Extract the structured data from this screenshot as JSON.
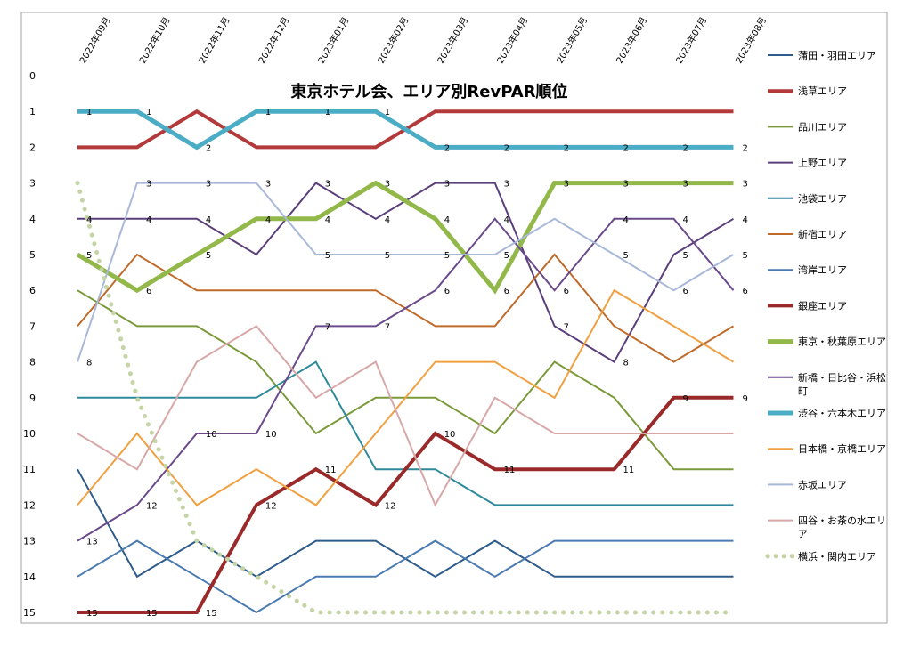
{
  "chart_data": {
    "type": "line",
    "title": "東京ホテル会、エリア別RevPAR順位",
    "xlabel": "",
    "ylabel": "",
    "x": [
      "2022年09月",
      "2022年10月",
      "2022年11月",
      "2022年12月",
      "2023年01月",
      "2023年02月",
      "2023年03月",
      "2023年04月",
      "2023年05月",
      "2023年06月",
      "2023年07月",
      "2023年08月"
    ],
    "y_ticks": [
      "0",
      "1",
      "2",
      "3",
      "4",
      "5",
      "6",
      "7",
      "8",
      "9",
      "10",
      "11",
      "12",
      "13",
      "14",
      "15"
    ],
    "ylim": [
      0,
      15
    ],
    "y_reversed": true,
    "grid": false,
    "legend_position": "right",
    "series": [
      {
        "name": "蒲田・羽田エリア",
        "color": "#2e5c8a",
        "width": 2,
        "dash": "",
        "values": [
          11,
          14,
          13,
          14,
          13,
          13,
          14,
          13,
          14,
          14,
          14,
          14
        ],
        "labels": [
          null,
          null,
          null,
          null,
          null,
          null,
          null,
          null,
          null,
          null,
          null,
          null
        ]
      },
      {
        "name": "浅草エリア",
        "color": "#b33a3a",
        "width": 4,
        "dash": "",
        "values": [
          2,
          2,
          1,
          2,
          2,
          2,
          1,
          1,
          1,
          1,
          1,
          1
        ],
        "labels": [
          null,
          null,
          null,
          null,
          null,
          null,
          null,
          null,
          null,
          null,
          null,
          null
        ]
      },
      {
        "name": "品川エリア",
        "color": "#7a9a3a",
        "width": 2,
        "dash": "",
        "values": [
          6,
          7,
          7,
          8,
          10,
          9,
          9,
          10,
          8,
          9,
          11,
          11
        ],
        "labels": [
          null,
          null,
          null,
          null,
          null,
          null,
          null,
          null,
          null,
          null,
          null,
          null
        ]
      },
      {
        "name": "上野エリア",
        "color": "#5b3f7a",
        "width": 2,
        "dash": "",
        "values": [
          4,
          4,
          4,
          5,
          3,
          4,
          3,
          3,
          7,
          8,
          5,
          4
        ],
        "labels": [
          4,
          4,
          4,
          null,
          3,
          4,
          3,
          3,
          7,
          8,
          5,
          4
        ]
      },
      {
        "name": "池袋エリア",
        "color": "#2e8a9a",
        "width": 2,
        "dash": "",
        "values": [
          9,
          9,
          9,
          9,
          8,
          11,
          11,
          12,
          12,
          12,
          12,
          12
        ],
        "labels": [
          null,
          null,
          null,
          null,
          null,
          null,
          null,
          null,
          null,
          null,
          null,
          null
        ]
      },
      {
        "name": "新宿エリア",
        "color": "#c06a2a",
        "width": 2,
        "dash": "",
        "values": [
          7,
          5,
          6,
          6,
          6,
          6,
          7,
          7,
          5,
          7,
          8,
          7
        ],
        "labels": [
          null,
          null,
          null,
          null,
          null,
          null,
          null,
          null,
          null,
          null,
          null,
          null
        ]
      },
      {
        "name": "湾岸エリア",
        "color": "#4a7ab0",
        "width": 2,
        "dash": "",
        "values": [
          14,
          13,
          14,
          15,
          14,
          14,
          13,
          14,
          13,
          13,
          13,
          13
        ],
        "labels": [
          null,
          null,
          null,
          null,
          null,
          null,
          null,
          null,
          null,
          null,
          null,
          null
        ]
      },
      {
        "name": "銀座エリア",
        "color": "#9a2a2a",
        "width": 4,
        "dash": "",
        "values": [
          15,
          15,
          15,
          12,
          11,
          12,
          10,
          11,
          11,
          11,
          9,
          9
        ],
        "labels": [
          15,
          15,
          15,
          12,
          11,
          12,
          10,
          11,
          null,
          11,
          9,
          9
        ]
      },
      {
        "name": "東京・秋葉原エリア",
        "color": "#92b84a",
        "width": 5,
        "dash": "",
        "values": [
          5,
          6,
          5,
          4,
          4,
          3,
          4,
          6,
          3,
          3,
          3,
          3
        ],
        "labels": [
          5,
          6,
          5,
          4,
          4,
          3,
          4,
          6,
          3,
          3,
          3,
          3
        ]
      },
      {
        "name": "新橋・日比谷・浜松町",
        "color": "#6a4a8a",
        "width": 2,
        "dash": "",
        "values": [
          13,
          12,
          10,
          10,
          7,
          7,
          6,
          4,
          6,
          4,
          4,
          6
        ],
        "labels": [
          13,
          12,
          10,
          10,
          7,
          7,
          6,
          4,
          6,
          4,
          4,
          6
        ]
      },
      {
        "name": "渋谷・六本木エリア",
        "color": "#4bacc6",
        "width": 5,
        "dash": "",
        "values": [
          1,
          1,
          2,
          1,
          1,
          1,
          2,
          2,
          2,
          2,
          2,
          2
        ],
        "labels": [
          1,
          1,
          2,
          1,
          1,
          1,
          2,
          2,
          2,
          2,
          2,
          2
        ]
      },
      {
        "name": "日本橋・京橋エリア",
        "color": "#f0a040",
        "width": 2,
        "dash": "",
        "values": [
          12,
          10,
          12,
          11,
          12,
          10,
          8,
          8,
          9,
          6,
          7,
          8
        ],
        "labels": [
          null,
          null,
          null,
          null,
          null,
          null,
          null,
          null,
          null,
          null,
          null,
          null
        ]
      },
      {
        "name": "赤坂エリア",
        "color": "#a8b8d8",
        "width": 2,
        "dash": "",
        "values": [
          8,
          3,
          3,
          3,
          5,
          5,
          5,
          5,
          4,
          5,
          6,
          5
        ],
        "labels": [
          8,
          3,
          3,
          3,
          5,
          5,
          5,
          5,
          null,
          5,
          6,
          5
        ]
      },
      {
        "name": "四谷・お茶の水エリア",
        "color": "#d8a8a8",
        "width": 2,
        "dash": "",
        "values": [
          10,
          11,
          8,
          7,
          9,
          8,
          12,
          9,
          10,
          10,
          10,
          10
        ],
        "labels": [
          null,
          null,
          null,
          null,
          null,
          null,
          null,
          null,
          null,
          null,
          null,
          null
        ]
      },
      {
        "name": "横浜・関内エリア",
        "color": "#c4d4a4",
        "width": 5,
        "dash": "dot",
        "values": [
          3,
          9,
          13,
          14,
          15,
          15,
          15,
          15,
          15,
          15,
          15,
          15
        ],
        "labels": [
          null,
          null,
          null,
          null,
          null,
          null,
          null,
          null,
          null,
          null,
          null,
          null
        ]
      }
    ]
  }
}
